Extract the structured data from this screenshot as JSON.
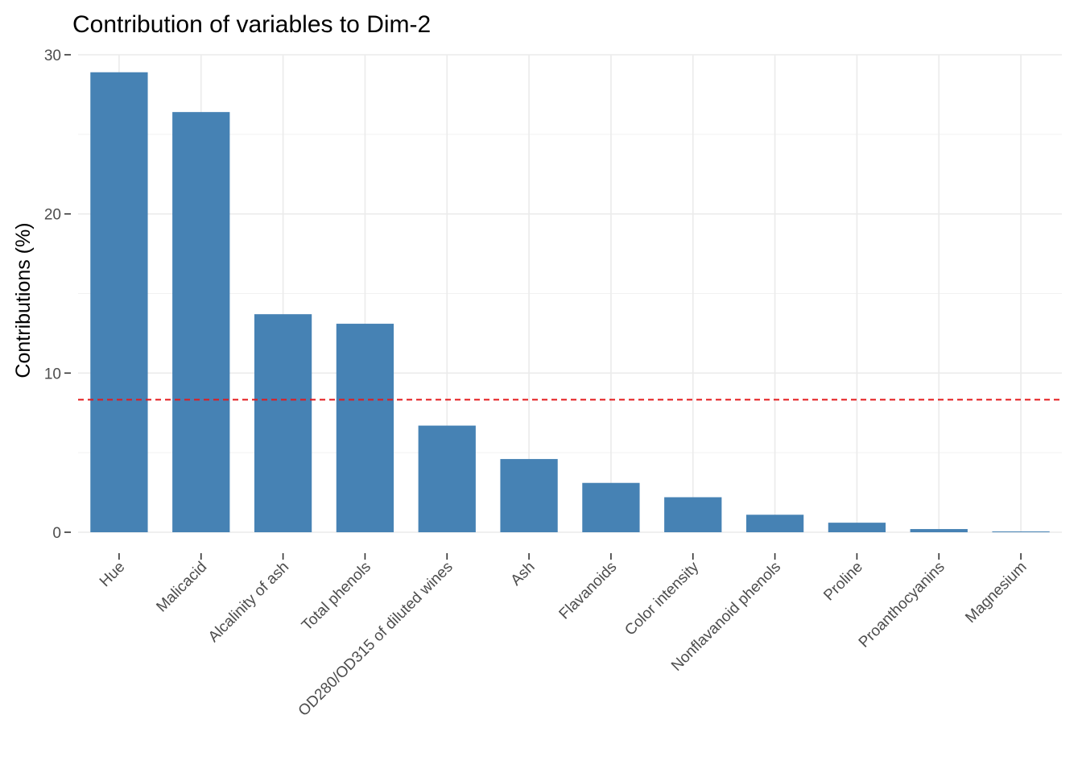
{
  "chart_data": {
    "type": "bar",
    "title": "Contribution of variables to Dim-2",
    "xlabel": "",
    "ylabel": "Contributions (%)",
    "categories": [
      "Hue",
      "Malicacid",
      "Alcalinity of ash",
      "Total phenols",
      "OD280/OD315 of diluted wines",
      "Ash",
      "Flavanoids",
      "Color intensity",
      "Nonflavanoid phenols",
      "Proline",
      "Proanthocyanins",
      "Magnesium"
    ],
    "values": [
      28.9,
      26.4,
      13.7,
      13.1,
      6.7,
      4.6,
      3.1,
      2.2,
      1.1,
      0.6,
      0.2,
      0.05
    ],
    "ylim": [
      0,
      30
    ],
    "yticks": [
      0,
      10,
      20,
      30
    ],
    "reference_line": {
      "value": 8.33,
      "style": "dashed",
      "color": "#e41a1c"
    },
    "bar_color": "#4682b4",
    "grid": true
  }
}
